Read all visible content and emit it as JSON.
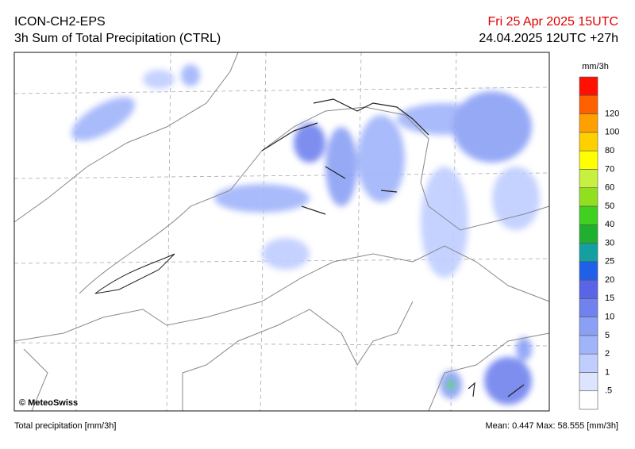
{
  "header": {
    "title": "ICON-CH2-EPS",
    "subtitle": "3h Sum of Total Precipitation (CTRL)",
    "valid_time": "Fri 25 Apr 2025 15UTC",
    "run_time": "24.04.2025 12UTC +27h"
  },
  "legend": {
    "unit": "mm/3h",
    "colors": [
      "#ffffff",
      "#dde4ff",
      "#bfcdff",
      "#a0b4fa",
      "#8ba0f5",
      "#6f82ee",
      "#5a64e6",
      "#2060e8",
      "#14a0a0",
      "#20b030",
      "#40d020",
      "#90e020",
      "#c8f040",
      "#ffff00",
      "#ffd000",
      "#ffa000",
      "#ff6000",
      "#ff1000"
    ],
    "labels": [
      ".5",
      "1",
      "2",
      "5",
      "10",
      "15",
      "20",
      "25",
      "30",
      "40",
      "50",
      "60",
      "70",
      "80",
      "100",
      "120"
    ]
  },
  "credit": "© MeteoSwiss",
  "footer": {
    "left": "Total precipitation [mm/3h]",
    "stats": "Mean:  0.447 Max:  58.555 [mm/3h]"
  }
}
